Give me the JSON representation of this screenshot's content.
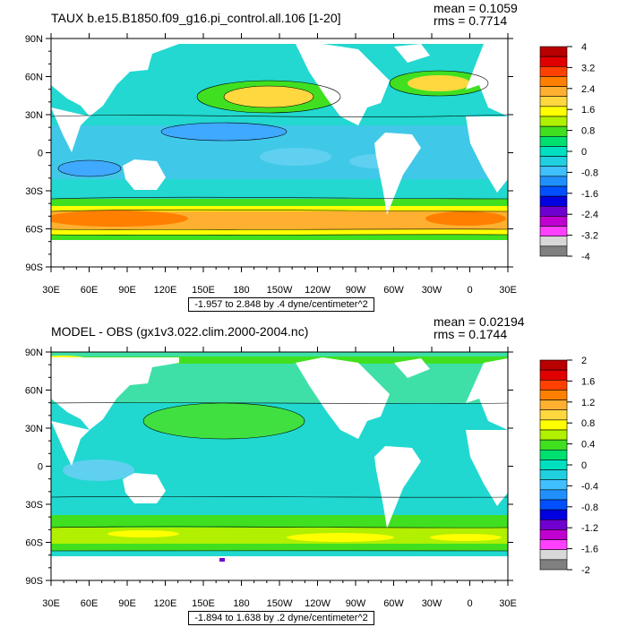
{
  "panels": [
    {
      "title": "TAUX b.e15.B1850.f09_g16.pi_control.all.106 [1-20]",
      "mean": "mean = 0.1059",
      "rms": "rms = 0.7714",
      "range_text": "-1.957 to 2.848 by .4 dyne/centimeter^2",
      "lat_labels": [
        "90N",
        "60N",
        "30N",
        "0",
        "30S",
        "60S",
        "90S"
      ],
      "lon_labels": [
        "30E",
        "60E",
        "90E",
        "120E",
        "150E",
        "180",
        "150W",
        "120W",
        "90W",
        "60W",
        "30W",
        "0",
        "30E"
      ],
      "colorbar": {
        "labels": [
          "4",
          "3.2",
          "2.4",
          "1.6",
          "0.8",
          "0",
          "-0.8",
          "-1.6",
          "-2.4",
          "-3.2",
          "-4"
        ],
        "colors": [
          "#b80000",
          "#e00000",
          "#ff4000",
          "#ff8000",
          "#ffb030",
          "#ffd840",
          "#ffff00",
          "#b0f000",
          "#40e020",
          "#00e070",
          "#00e0c0",
          "#20d0e0",
          "#40c0ff",
          "#2090ff",
          "#0050ff",
          "#0000e0",
          "#7000d0",
          "#c000d0",
          "#ff40ff",
          "#d8d8d8",
          "#808080"
        ]
      }
    },
    {
      "title": "MODEL - OBS (gx1v3.022.clim.2000-2004.nc)",
      "mean": "mean = 0.02194",
      "rms": "rms = 0.1744",
      "range_text": "-1.894 to 1.638 by .2 dyne/centimeter^2",
      "lat_labels": [
        "90N",
        "60N",
        "30N",
        "0",
        "30S",
        "60S",
        "90S"
      ],
      "lon_labels": [
        "30E",
        "60E",
        "90E",
        "120E",
        "150E",
        "180",
        "150W",
        "120W",
        "90W",
        "60W",
        "30W",
        "0",
        "30E"
      ],
      "colorbar": {
        "labels": [
          "2",
          "1.6",
          "1.2",
          "0.8",
          "0.4",
          "0",
          "-0.4",
          "-0.8",
          "-1.2",
          "-1.6",
          "-2"
        ],
        "colors": [
          "#b80000",
          "#e00000",
          "#ff4000",
          "#ff8000",
          "#ffb030",
          "#ffd840",
          "#ffff00",
          "#b0f000",
          "#40e020",
          "#00e070",
          "#00e0c0",
          "#20d0e0",
          "#40c0ff",
          "#2090ff",
          "#0050ff",
          "#0000e0",
          "#7000d0",
          "#c000d0",
          "#ff40ff",
          "#d8d8d8",
          "#808080"
        ]
      }
    }
  ]
}
